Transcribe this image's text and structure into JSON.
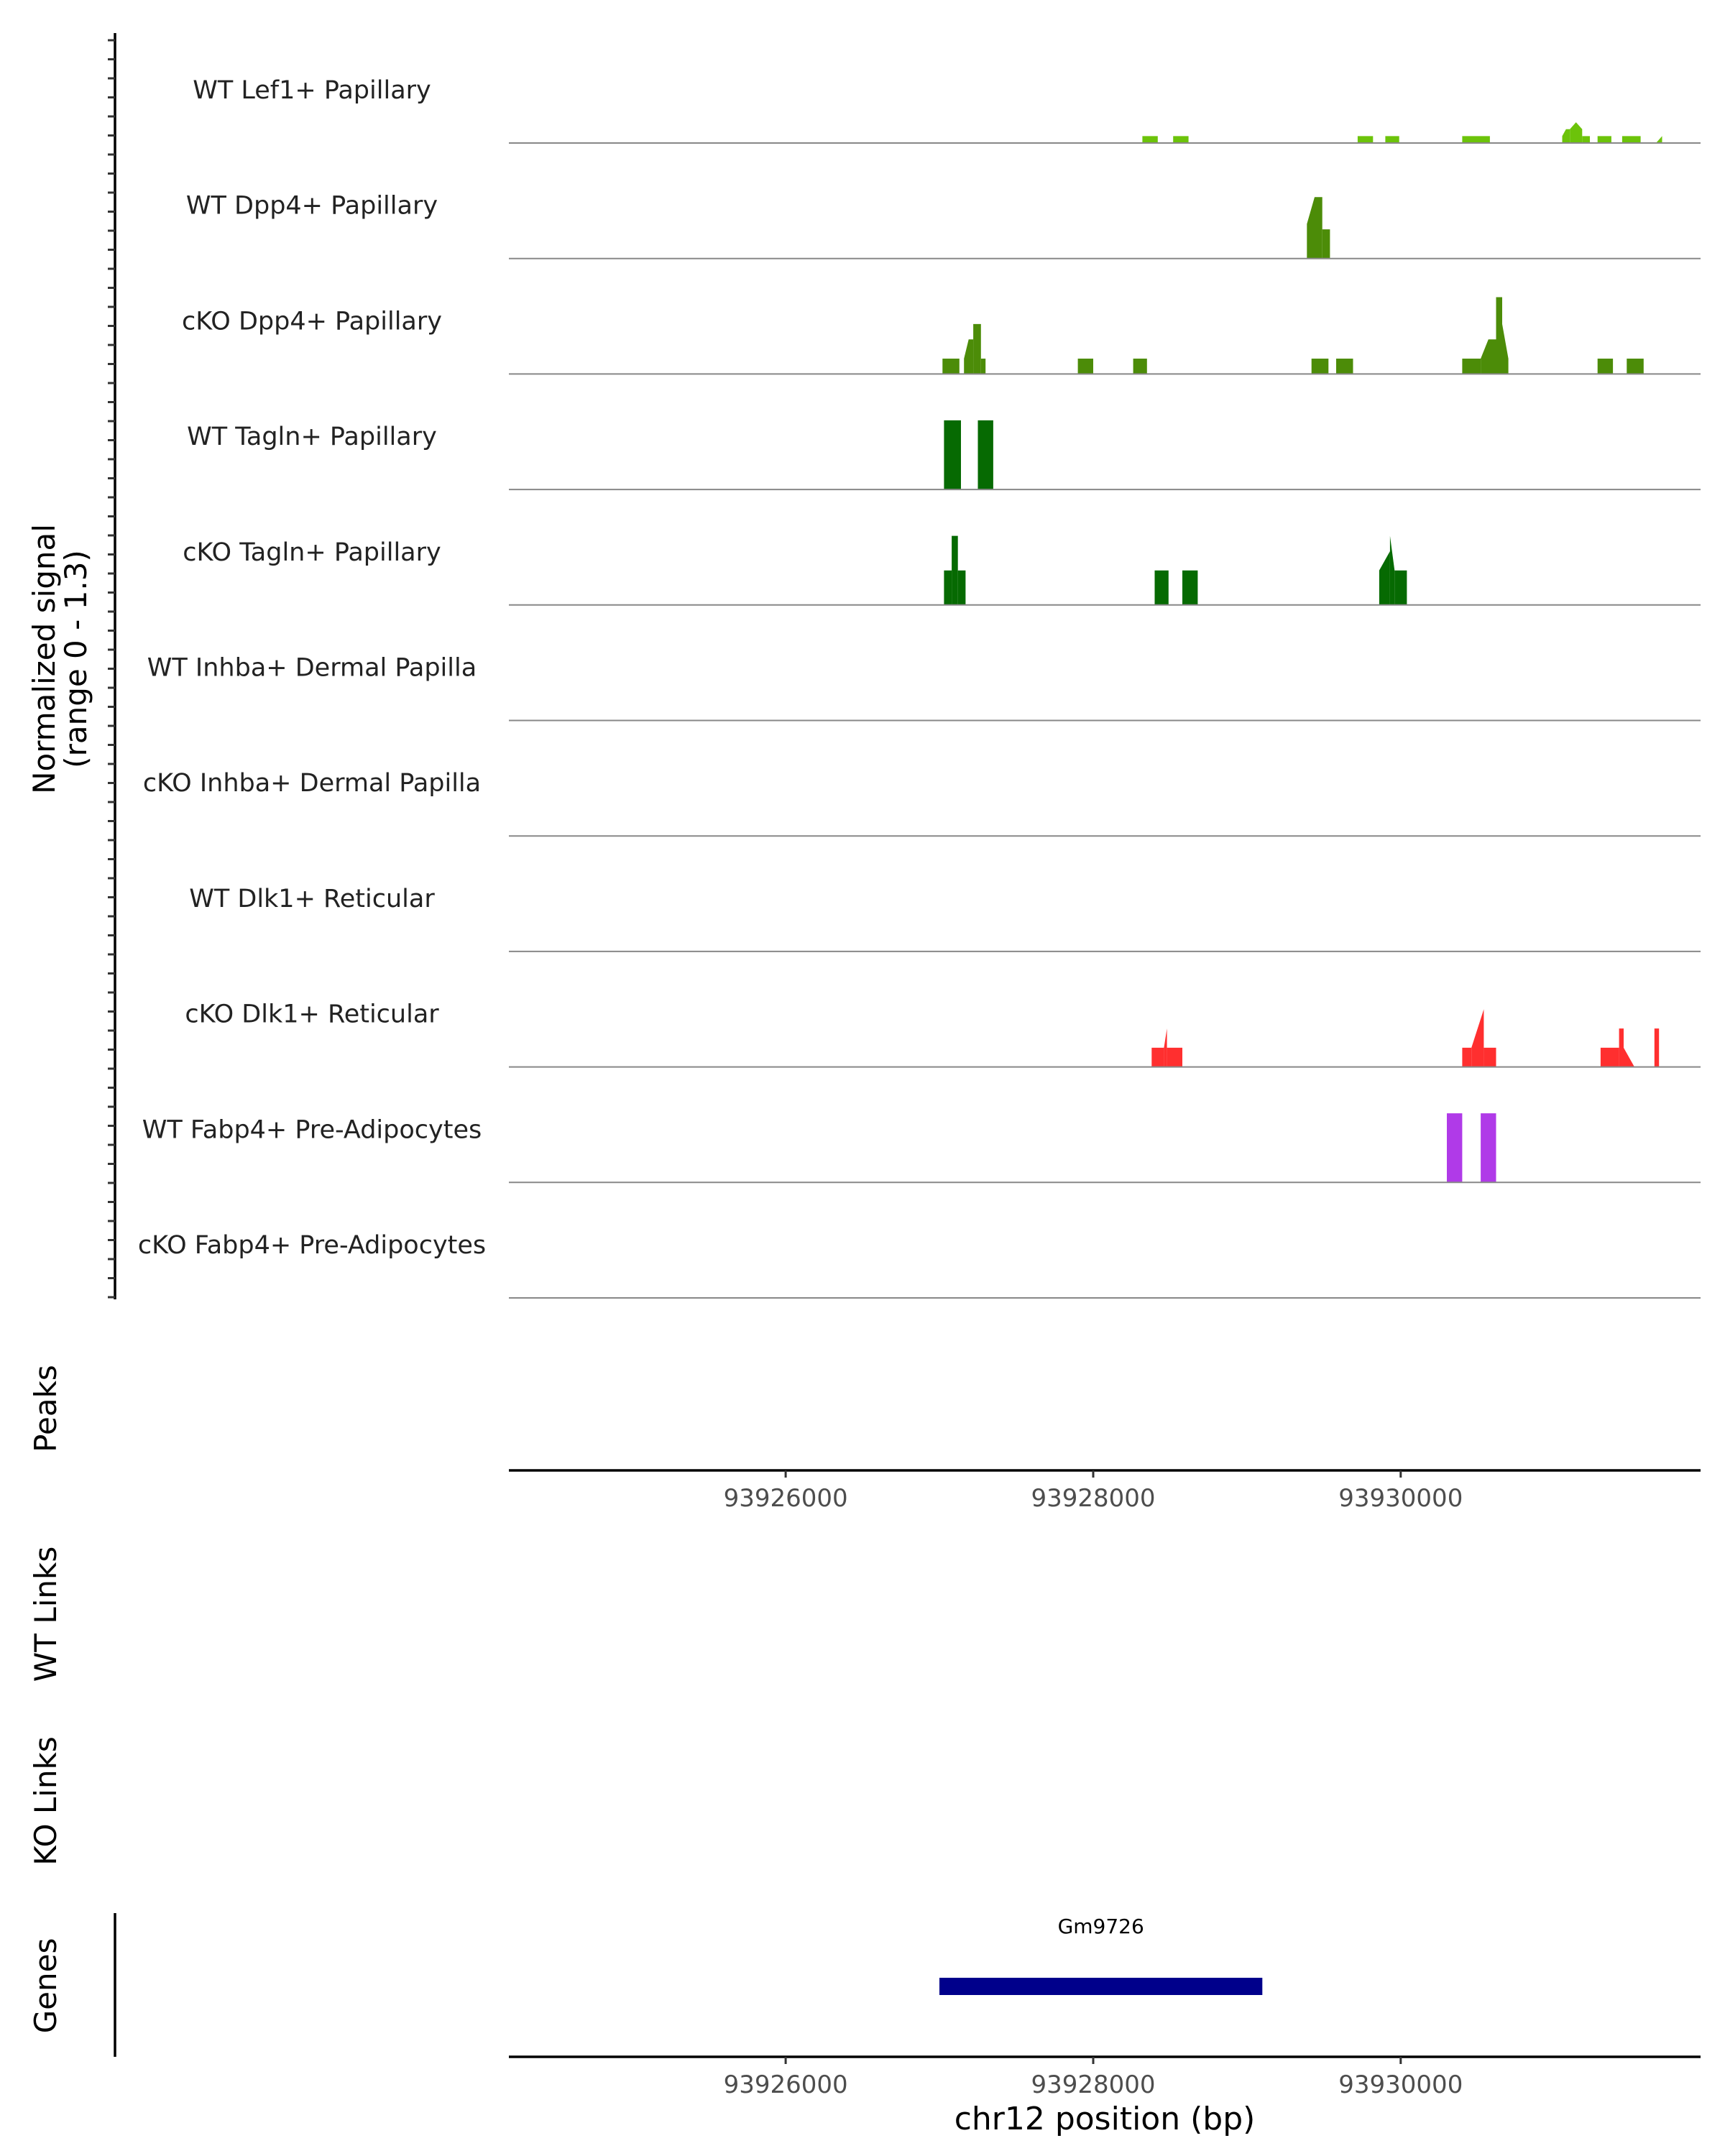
{
  "chart_data": {
    "type": "area",
    "title": "",
    "chromosome": "chr12",
    "xlabel": "chr12 position (bp)",
    "xlim": [
      93924200,
      93931950
    ],
    "x_ticks": [
      93926000,
      93928000,
      93930000
    ],
    "x_tick_labels": [
      "93926000",
      "93928000",
      "93930000"
    ],
    "ylabel": "Normalized signal",
    "ylabel_range": "(range 0 - 1.3)",
    "ylim": [
      0,
      1.3
    ],
    "track_labels": {
      "peaks": "Peaks",
      "wt_links": "WT Links",
      "ko_links": "KO Links",
      "genes": "Genes"
    },
    "series": [
      {
        "name": "WT Lef1+ Papillary",
        "color": "#6cc30a",
        "blocks": [
          {
            "start": 93928320,
            "end": 93928420,
            "h": [
              0.09,
              0.09
            ]
          },
          {
            "start": 93928520,
            "end": 93928620,
            "h": [
              0.09,
              0.09
            ]
          },
          {
            "start": 93929720,
            "end": 93929820,
            "h": [
              0.09,
              0.09
            ]
          },
          {
            "start": 93929900,
            "end": 93929990,
            "h": [
              0.09,
              0.09
            ]
          },
          {
            "start": 93930400,
            "end": 93930580,
            "h": [
              0.09,
              0.09
            ]
          },
          {
            "start": 93931050,
            "end": 93931100,
            "h": [
              0.09,
              0.18,
              0.18
            ]
          },
          {
            "start": 93931100,
            "end": 93931180,
            "h": [
              0.18,
              0.27,
              0.18
            ]
          },
          {
            "start": 93931180,
            "end": 93931230,
            "h": [
              0.09,
              0.09
            ]
          },
          {
            "start": 93931280,
            "end": 93931370,
            "h": [
              0.09,
              0.09
            ]
          },
          {
            "start": 93931440,
            "end": 93931560,
            "h": [
              0.09,
              0.09
            ]
          },
          {
            "start": 93931660,
            "end": 93931700,
            "h": [
              0.0,
              0.09
            ]
          }
        ]
      },
      {
        "name": "WT Dpp4+ Papillary",
        "color": "#4c8c08",
        "blocks": [
          {
            "start": 93929390,
            "end": 93929440,
            "h": [
              0.45,
              0.8
            ]
          },
          {
            "start": 93929440,
            "end": 93929490,
            "h": [
              0.8,
              0.8
            ]
          },
          {
            "start": 93929490,
            "end": 93929540,
            "h": [
              0.38,
              0.38
            ]
          }
        ]
      },
      {
        "name": "cKO Dpp4+ Papillary",
        "color": "#4c8c08",
        "blocks": [
          {
            "start": 93927020,
            "end": 93927130,
            "h": [
              0.2,
              0.2
            ]
          },
          {
            "start": 93927160,
            "end": 93927220,
            "h": [
              0.2,
              0.45,
              0.45
            ]
          },
          {
            "start": 93927220,
            "end": 93927270,
            "h": [
              0.65,
              0.65
            ]
          },
          {
            "start": 93927270,
            "end": 93927300,
            "h": [
              0.2,
              0.2
            ]
          },
          {
            "start": 93927900,
            "end": 93928000,
            "h": [
              0.2,
              0.2
            ]
          },
          {
            "start": 93928260,
            "end": 93928350,
            "h": [
              0.2,
              0.2
            ]
          },
          {
            "start": 93929420,
            "end": 93929530,
            "h": [
              0.2,
              0.2
            ]
          },
          {
            "start": 93929580,
            "end": 93929690,
            "h": [
              0.2,
              0.2
            ]
          },
          {
            "start": 93930400,
            "end": 93930520,
            "h": [
              0.2,
              0.2
            ]
          },
          {
            "start": 93930520,
            "end": 93930620,
            "h": [
              0.2,
              0.45,
              0.45
            ]
          },
          {
            "start": 93930620,
            "end": 93930660,
            "h": [
              1.0,
              1.0
            ]
          },
          {
            "start": 93930660,
            "end": 93930700,
            "h": [
              0.65,
              0.2
            ]
          },
          {
            "start": 93931280,
            "end": 93931380,
            "h": [
              0.2,
              0.2
            ]
          },
          {
            "start": 93931470,
            "end": 93931580,
            "h": [
              0.2,
              0.2
            ]
          }
        ]
      },
      {
        "name": "WT Tagln+ Papillary",
        "color": "#066a02",
        "blocks": [
          {
            "start": 93927030,
            "end": 93927140,
            "h": [
              0.9,
              0.9
            ]
          },
          {
            "start": 93927250,
            "end": 93927350,
            "h": [
              0.9,
              0.9
            ]
          }
        ]
      },
      {
        "name": "cKO Tagln+ Papillary",
        "color": "#066a02",
        "blocks": [
          {
            "start": 93927030,
            "end": 93927080,
            "h": [
              0.45,
              0.45
            ]
          },
          {
            "start": 93927080,
            "end": 93927120,
            "h": [
              0.9,
              0.9
            ]
          },
          {
            "start": 93927120,
            "end": 93927170,
            "h": [
              0.45,
              0.45
            ]
          },
          {
            "start": 93928400,
            "end": 93928490,
            "h": [
              0.45,
              0.45
            ]
          },
          {
            "start": 93928580,
            "end": 93928680,
            "h": [
              0.45,
              0.45
            ]
          },
          {
            "start": 93929860,
            "end": 93929930,
            "h": [
              0.45,
              0.7
            ]
          },
          {
            "start": 93929930,
            "end": 93929960,
            "h": [
              0.9,
              0.45
            ]
          },
          {
            "start": 93929960,
            "end": 93930040,
            "h": [
              0.45,
              0.45
            ]
          }
        ]
      },
      {
        "name": "WT Inhba+ Dermal Papilla",
        "color": "#3a8a3a",
        "blocks": []
      },
      {
        "name": "cKO Inhba+ Dermal Papilla",
        "color": "#3a8a3a",
        "blocks": []
      },
      {
        "name": "WT Dlk1+ Reticular",
        "color": "#ff2f2f",
        "blocks": []
      },
      {
        "name": "cKO Dlk1+ Reticular",
        "color": "#ff2f2f",
        "blocks": [
          {
            "start": 93928380,
            "end": 93928460,
            "h": [
              0.25,
              0.25
            ]
          },
          {
            "start": 93928460,
            "end": 93928480,
            "h": [
              0.25,
              0.5
            ]
          },
          {
            "start": 93928480,
            "end": 93928580,
            "h": [
              0.25,
              0.25
            ]
          },
          {
            "start": 93930400,
            "end": 93930460,
            "h": [
              0.25,
              0.25
            ]
          },
          {
            "start": 93930460,
            "end": 93930540,
            "h": [
              0.25,
              0.75
            ]
          },
          {
            "start": 93930540,
            "end": 93930620,
            "h": [
              0.25,
              0.25
            ]
          },
          {
            "start": 93931300,
            "end": 93931420,
            "h": [
              0.25,
              0.25
            ]
          },
          {
            "start": 93931420,
            "end": 93931450,
            "h": [
              0.5,
              0.5
            ]
          },
          {
            "start": 93931450,
            "end": 93931520,
            "h": [
              0.25,
              0.0
            ]
          },
          {
            "start": 93931650,
            "end": 93931680,
            "h": [
              0.5,
              0.5
            ]
          }
        ]
      },
      {
        "name": "WT Fabp4+ Pre-Adipocytes",
        "color": "#b03ae8",
        "blocks": [
          {
            "start": 93930300,
            "end": 93930400,
            "h": [
              0.9,
              0.9
            ]
          },
          {
            "start": 93930520,
            "end": 93930620,
            "h": [
              0.9,
              0.9
            ]
          }
        ]
      },
      {
        "name": "cKO Fabp4+ Pre-Adipocytes",
        "color": "#b03ae8",
        "blocks": []
      }
    ],
    "genes": [
      {
        "name": "Gm9726",
        "start": 93927000,
        "end": 93929100,
        "strand": "+",
        "color": "#00008b"
      }
    ]
  }
}
